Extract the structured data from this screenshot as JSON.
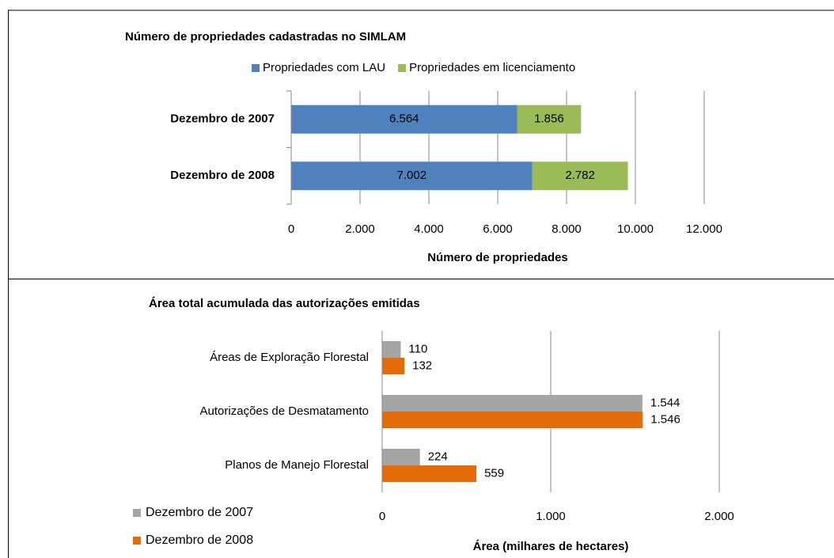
{
  "chart_data": [
    {
      "type": "bar",
      "stacked": true,
      "title": "Número de propriedades cadastradas no SIMLAM",
      "xlabel": "Número de propriedades",
      "categories": [
        "Dezembro de 2007",
        "Dezembro de 2008"
      ],
      "series": [
        {
          "name": "Propriedades com LAU",
          "color": "#4f81bd",
          "values": [
            6564,
            7002
          ],
          "value_labels": [
            "6.564",
            "7.002"
          ]
        },
        {
          "name": "Propriedades em licenciamento",
          "color": "#9bbb59",
          "values": [
            1856,
            2782
          ],
          "value_labels": [
            "1.856",
            "2.782"
          ]
        }
      ],
      "xlim": [
        0,
        12000
      ],
      "xticks": [
        0,
        {
          "value": 2000,
          "label": "2.000"
        },
        {
          "value": 4000,
          "label": "4.000"
        },
        {
          "value": 6000,
          "label": "6.000"
        },
        {
          "value": 8000,
          "label": "8.000"
        },
        {
          "value": 10000,
          "label": "10.000"
        },
        {
          "value": 12000,
          "label": "12.000"
        }
      ],
      "grid": true,
      "legend": "top"
    },
    {
      "type": "bar",
      "stacked": false,
      "title": "Área total acumulada das autorizações emitidas",
      "xlabel": "Área (milhares de hectares)",
      "categories": [
        "Áreas de Exploração Florestal",
        "Autorizações de Desmatamento",
        "Planos de Manejo Florestal"
      ],
      "series": [
        {
          "name": "Dezembro de 2007",
          "color": "#a5a5a5",
          "values": [
            110,
            1544,
            224
          ],
          "value_labels": [
            "110",
            "1.544",
            "224"
          ]
        },
        {
          "name": "Dezembro de 2008",
          "color": "#e46c0a",
          "values": [
            132,
            1546,
            559
          ],
          "value_labels": [
            "132",
            "1.546",
            "559"
          ]
        }
      ],
      "xlim": [
        0,
        2000
      ],
      "xticks": [
        0,
        {
          "value": 1000,
          "label": "1.000"
        },
        {
          "value": 2000,
          "label": "2.000"
        }
      ],
      "grid": true,
      "legend": "bottom-left"
    }
  ]
}
